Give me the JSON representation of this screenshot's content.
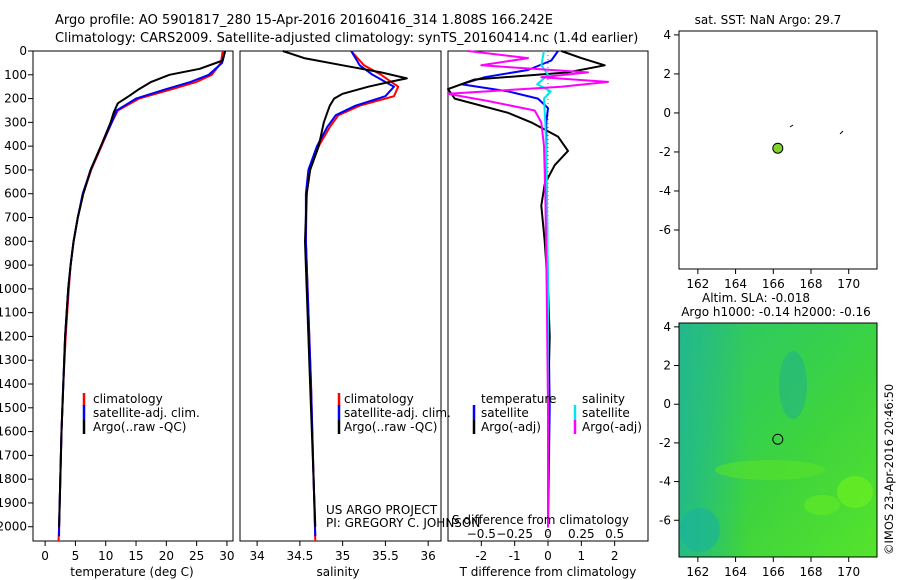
{
  "header": {
    "line1": "Argo profile: AO 5901817_280 15-Apr-2016 20160416_314 1.808S 166.242E",
    "line2": "Climatology: CARS2009. Satellite-adjusted climatology: synTS_20160414.nc (1.4d earlier)"
  },
  "colors": {
    "climatology": "#ff0000",
    "satellite": "#0000ff",
    "argo": "#000000",
    "sat_salinity": "#00e5ee",
    "argo_salinity": "#ff00ff",
    "argo_marker": "#7fd32a"
  },
  "chart_data": [
    {
      "id": "temperature",
      "type": "line",
      "xlabel": "temperature (deg C)",
      "ylabel": "",
      "xlim": [
        -2,
        31
      ],
      "ylim": [
        2060,
        0
      ],
      "xticks": [
        0,
        5,
        10,
        15,
        20,
        25,
        30
      ],
      "yticks": [
        0,
        100,
        200,
        300,
        400,
        500,
        600,
        700,
        800,
        900,
        1000,
        1100,
        1200,
        1300,
        1400,
        1500,
        1600,
        1700,
        1800,
        1900,
        2000
      ],
      "legend": [
        "climatology",
        "satellite-adj. clim.",
        "Argo(..raw -QC)"
      ],
      "legend_position": "lower-center",
      "series": [
        {
          "name": "climatology",
          "color": "climatology",
          "depth": [
            0,
            50,
            100,
            130,
            160,
            200,
            250,
            300,
            400,
            500,
            600,
            700,
            800,
            900,
            1000,
            1200,
            1400,
            1600,
            1800,
            2000,
            2060
          ],
          "values": [
            29.3,
            29.0,
            27.5,
            25.0,
            21.0,
            15.5,
            12.0,
            11.0,
            9.3,
            7.6,
            6.3,
            5.4,
            4.7,
            4.2,
            3.9,
            3.4,
            3.0,
            2.7,
            2.5,
            2.3,
            2.2
          ]
        },
        {
          "name": "satellite-adj. clim.",
          "color": "satellite",
          "depth": [
            0,
            50,
            100,
            130,
            160,
            200,
            250,
            300,
            400,
            500,
            600,
            700,
            800,
            900,
            1000,
            1200,
            1400,
            1600,
            1800,
            2000,
            2040
          ],
          "values": [
            29.7,
            29.2,
            27.0,
            24.0,
            20.0,
            15.0,
            11.8,
            11.0,
            9.2,
            7.5,
            6.2,
            5.4,
            4.7,
            4.2,
            3.8,
            3.3,
            3.0,
            2.7,
            2.5,
            2.3,
            2.3
          ]
        },
        {
          "name": "Argo(..raw -QC)",
          "color": "argo",
          "depth": [
            0,
            40,
            75,
            100,
            130,
            160,
            190,
            220,
            260,
            300,
            400,
            500,
            600,
            700,
            800,
            900,
            1000,
            1200,
            1400,
            1600,
            1800,
            2000
          ],
          "values": [
            29.7,
            29.3,
            25.5,
            20.5,
            17.5,
            15.5,
            13.8,
            12.0,
            11.3,
            10.8,
            9.2,
            7.5,
            6.3,
            5.4,
            4.7,
            4.2,
            3.8,
            3.3,
            3.0,
            2.7,
            2.5,
            2.3
          ]
        }
      ]
    },
    {
      "id": "salinity",
      "type": "line",
      "xlabel": "salinity",
      "ylabel": "",
      "xlim": [
        33.8,
        36.15
      ],
      "ylim": [
        2060,
        0
      ],
      "xticks": [
        34,
        34.5,
        35,
        35.5,
        36
      ],
      "legend": [
        "climatology",
        "satellite-adj. clim.",
        "Argo(..raw -QC)"
      ],
      "legend_position": "lower-right",
      "annotation": [
        "US ARGO PROJECT",
        "PI: GREGORY C. JOHNSON"
      ],
      "series": [
        {
          "name": "climatology",
          "color": "climatology",
          "depth": [
            0,
            60,
            100,
            150,
            190,
            230,
            270,
            320,
            400,
            500,
            600,
            800,
            1000,
            1400,
            1800,
            2060
          ],
          "values": [
            35.1,
            35.25,
            35.45,
            35.65,
            35.6,
            35.2,
            34.95,
            34.85,
            34.72,
            34.62,
            34.58,
            34.57,
            34.59,
            34.63,
            34.66,
            34.68
          ]
        },
        {
          "name": "satellite-adj. clim.",
          "color": "satellite",
          "depth": [
            0,
            60,
            100,
            150,
            190,
            230,
            270,
            320,
            400,
            500,
            600,
            800,
            1000,
            1400,
            1800,
            2040
          ],
          "values": [
            35.1,
            35.2,
            35.35,
            35.6,
            35.5,
            35.15,
            34.92,
            34.82,
            34.7,
            34.6,
            34.57,
            34.57,
            34.59,
            34.63,
            34.66,
            34.68
          ]
        },
        {
          "name": "Argo(..raw -QC)",
          "color": "argo",
          "depth": [
            0,
            30,
            60,
            90,
            115,
            130,
            150,
            180,
            200,
            230,
            260,
            300,
            400,
            500,
            600,
            800,
            1000,
            1400,
            1800,
            2000
          ],
          "values": [
            34.3,
            34.55,
            35.0,
            35.45,
            35.75,
            35.55,
            35.3,
            35.0,
            34.9,
            34.85,
            34.82,
            34.78,
            34.72,
            34.62,
            34.58,
            34.56,
            34.58,
            34.62,
            34.66,
            34.68
          ]
        }
      ]
    },
    {
      "id": "difference",
      "type": "line",
      "xlabel": "T difference from climatology",
      "top_xlabel": "S difference from climatology",
      "xlim": [
        -3,
        3
      ],
      "s_xlim": [
        -0.75,
        0.75
      ],
      "ylim": [
        2060,
        0
      ],
      "xticks": [
        -2,
        -1,
        0,
        1,
        2
      ],
      "top_ticks": [
        -0.5,
        -0.25,
        0,
        0.25,
        0.5
      ],
      "top_tick_labels": [
        "−0.5",
        "−0.25",
        "0",
        "0.25",
        "0.5"
      ],
      "legend_headings": [
        "temperature",
        "salinity"
      ],
      "legend": [
        "satellite",
        "Argo(-adj)",
        "satellite",
        "Argo(-adj)"
      ],
      "series": [
        {
          "name": "temperature satellite",
          "color": "satellite",
          "axis": "T",
          "depth": [
            0,
            40,
            80,
            110,
            140,
            170,
            200,
            240,
            300,
            500,
            1000,
            1500,
            2000
          ],
          "values": [
            0.3,
            0.1,
            -0.6,
            -1.9,
            -2.6,
            -1.2,
            -0.3,
            0.0,
            -0.05,
            -0.05,
            0.0,
            0.05,
            0.0
          ]
        },
        {
          "name": "temperature Argo(-adj)",
          "color": "argo",
          "axis": "T",
          "depth": [
            0,
            30,
            60,
            90,
            120,
            160,
            200,
            260,
            300,
            360,
            420,
            480,
            560,
            650,
            800,
            1000,
            1200,
            1500,
            1800,
            2000
          ],
          "values": [
            0.4,
            1.0,
            1.7,
            0.6,
            -2.2,
            -3.0,
            -2.8,
            -1.2,
            -0.5,
            0.3,
            0.6,
            0.2,
            -0.1,
            -0.2,
            -0.1,
            0.0,
            0.05,
            0.0,
            0.0,
            0.0
          ]
        },
        {
          "name": "salinity satellite",
          "color": "sat_salinity",
          "axis": "S",
          "depth": [
            0,
            60,
            100,
            140,
            170,
            200,
            300,
            500,
            1000,
            1500,
            2000
          ],
          "values": [
            -0.03,
            -0.05,
            0.0,
            -0.08,
            0.02,
            -0.03,
            -0.02,
            -0.01,
            0.0,
            0.0,
            0.0
          ]
        },
        {
          "name": "salinity Argo(-adj)",
          "color": "argo_salinity",
          "axis": "S",
          "depth": [
            0,
            30,
            60,
            90,
            110,
            130,
            150,
            180,
            210,
            250,
            300,
            400,
            600,
            1000,
            1500,
            2000
          ],
          "values": [
            -0.6,
            -0.15,
            -0.5,
            0.3,
            -0.05,
            0.45,
            0.1,
            -0.75,
            -0.45,
            -0.1,
            -0.05,
            -0.03,
            -0.02,
            -0.01,
            0.0,
            0.0
          ]
        }
      ]
    },
    {
      "id": "sst_map",
      "type": "scatter",
      "title": "sat. SST: NaN Argo: 29.7",
      "xlim": [
        161,
        171.5
      ],
      "ylim": [
        -8,
        4.2
      ],
      "xticks": [
        162,
        164,
        166,
        168,
        170
      ],
      "yticks": [
        4,
        2,
        0,
        -2,
        -4,
        -6
      ],
      "argo_position": {
        "lon": 166.24,
        "lat": -1.81
      }
    },
    {
      "id": "sla_map",
      "type": "heatmap",
      "title": "Altim. SLA: -0.018",
      "subtitle": "Argo h1000: -0.14 h2000: -0.16",
      "xlim": [
        161,
        171.5
      ],
      "ylim": [
        -7.9,
        4.2
      ],
      "xticks": [
        162,
        164,
        166,
        168,
        170
      ],
      "yticks": [
        4,
        2,
        0,
        -2,
        -4,
        -6
      ],
      "argo_position": {
        "lon": 166.24,
        "lat": -1.81
      },
      "side_label": "©IMOS 23-Apr-2016 20:46:50"
    }
  ]
}
